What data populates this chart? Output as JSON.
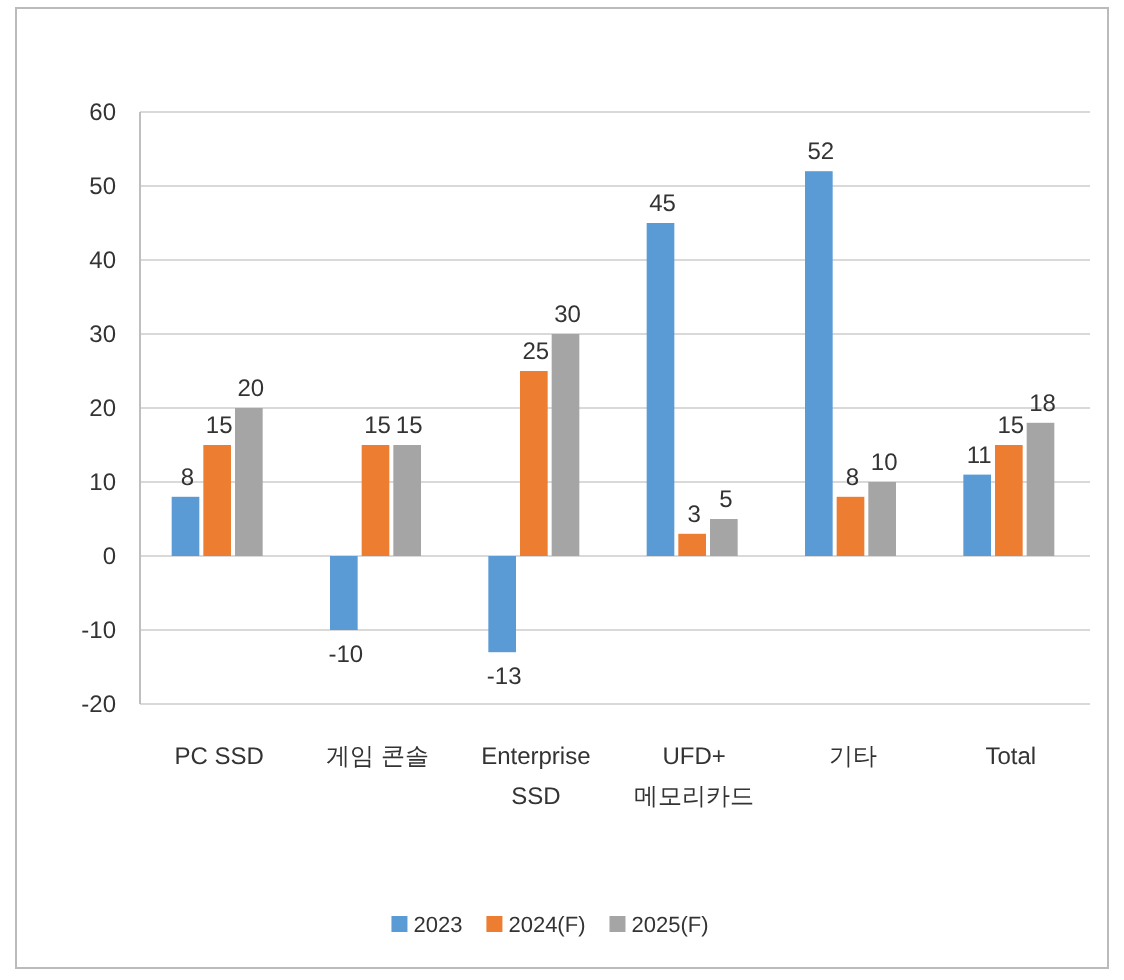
{
  "chart_data": {
    "type": "bar",
    "categories": [
      "PC SSD",
      "게임 콘솔",
      "Enterprise\nSSD",
      "UFD+\n메모리카드",
      "기타",
      "Total"
    ],
    "series": [
      {
        "name": "2023",
        "color": "#5b9bd5",
        "values": [
          8,
          -10,
          -13,
          45,
          52,
          11
        ]
      },
      {
        "name": "2024(F)",
        "color": "#ed7d31",
        "values": [
          15,
          15,
          25,
          3,
          8,
          15
        ]
      },
      {
        "name": "2025(F)",
        "color": "#a5a5a5",
        "values": [
          20,
          15,
          30,
          5,
          10,
          18
        ]
      }
    ],
    "ylim": [
      -20,
      60
    ],
    "yticks": [
      -20,
      -10,
      0,
      10,
      20,
      30,
      40,
      50,
      60
    ],
    "grid": "y",
    "legend": "bottom",
    "data_labels": true
  }
}
